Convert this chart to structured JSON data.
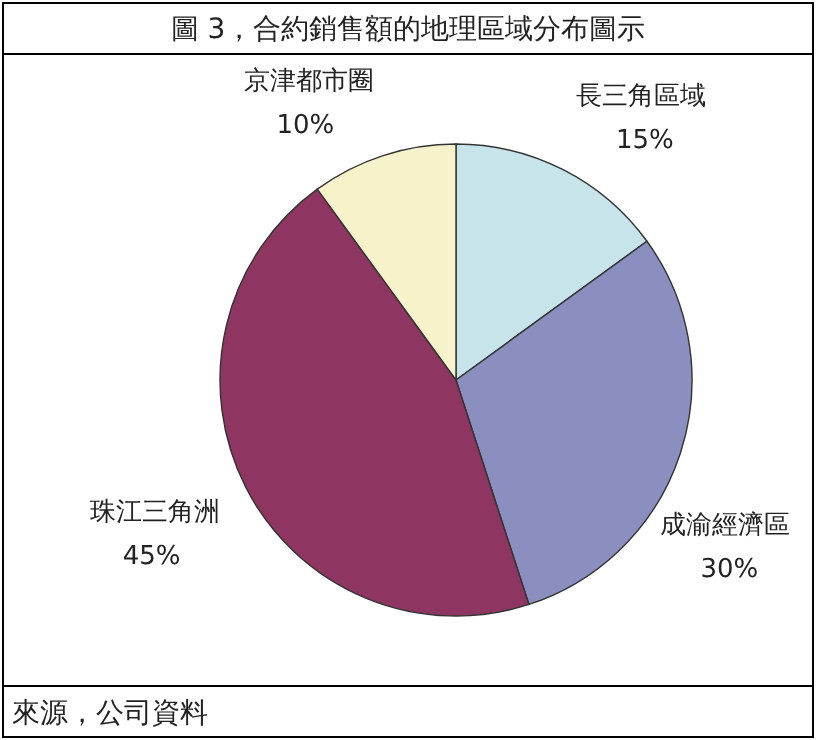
{
  "chart_data": {
    "type": "pie",
    "title": "圖 3，合約銷售額的地理區域分布圖示",
    "categories": [
      "長三角區域",
      "成渝經濟區",
      "珠江三角洲",
      "京津都市圈"
    ],
    "values": [
      15,
      30,
      45,
      10
    ],
    "colors": [
      "#c6e4ea",
      "#8a8fc0",
      "#8e3561",
      "#f6f2c9"
    ],
    "value_labels": [
      "15%",
      "30%",
      "45%",
      "10%"
    ],
    "annotations": [
      "來源，公司資料"
    ]
  }
}
